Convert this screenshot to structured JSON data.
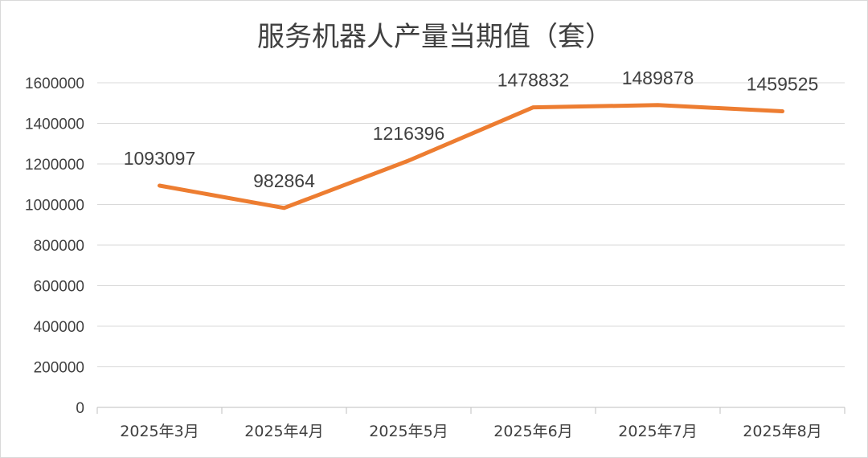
{
  "chart_data": {
    "type": "line",
    "title": "服务机器人产量当期值（套）",
    "categories": [
      "2025年3月",
      "2025年4月",
      "2025年5月",
      "2025年6月",
      "2025年7月",
      "2025年8月"
    ],
    "values": [
      1093097,
      982864,
      1216396,
      1478832,
      1489878,
      1459525
    ],
    "data_labels": [
      "1093097",
      "982864",
      "1216396",
      "1478832",
      "1489878",
      "1459525"
    ],
    "ylim": [
      0,
      1600000
    ],
    "y_ticks": [
      "0",
      "200000",
      "400000",
      "600000",
      "800000",
      "1000000",
      "1200000",
      "1400000",
      "1600000"
    ],
    "grid": true,
    "legend": "none",
    "line_color": "#ED7D31"
  }
}
